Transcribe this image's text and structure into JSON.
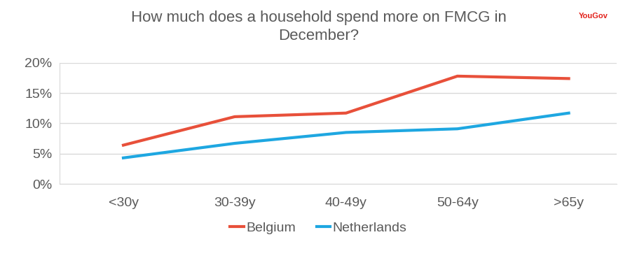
{
  "chart_data": {
    "type": "line",
    "title": "How much does a household spend more on FMCG in\nDecember?",
    "annotations": [
      "YouGov"
    ],
    "categories": [
      "<30y",
      "30-39y",
      "40-49y",
      "50-64y",
      ">65y"
    ],
    "series": [
      {
        "name": "Belgium",
        "color": "#e8503a",
        "values": [
          6.4,
          11.1,
          11.7,
          17.8,
          17.4
        ]
      },
      {
        "name": "Netherlands",
        "color": "#1ea7e1",
        "values": [
          4.3,
          6.7,
          8.5,
          9.1,
          11.7
        ]
      }
    ],
    "ylim": [
      0,
      20
    ],
    "yticks": [
      {
        "value": 0,
        "label": "0%"
      },
      {
        "value": 5,
        "label": "5%"
      },
      {
        "value": 10,
        "label": "10%"
      },
      {
        "value": 15,
        "label": "15%"
      },
      {
        "value": 20,
        "label": "20%"
      }
    ],
    "grid": true,
    "legend": "lower center"
  }
}
